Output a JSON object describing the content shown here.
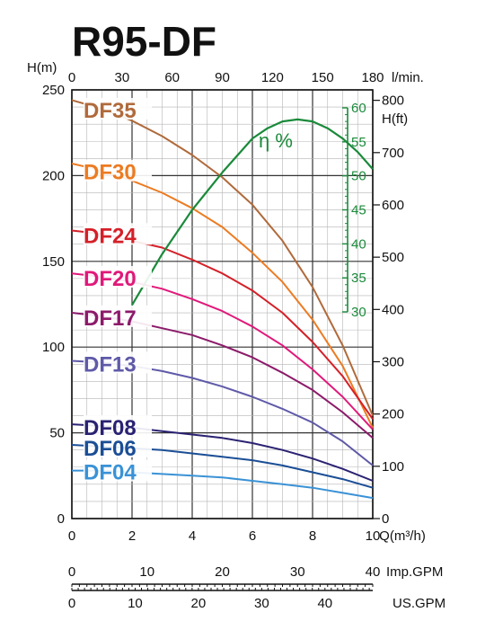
{
  "title": "R95-DF",
  "chart_data": {
    "type": "line",
    "title": "R95-DF",
    "axes": {
      "q_m3h": {
        "label": "Q(m³/h)",
        "range": [
          0,
          10
        ],
        "ticks": [
          0,
          2,
          4,
          6,
          8,
          10
        ]
      },
      "flow_lmin": {
        "label": "l/min.",
        "range": [
          0,
          180
        ],
        "ticks": [
          0,
          30,
          60,
          90,
          120,
          150,
          180
        ]
      },
      "head_m": {
        "label": "H(m)",
        "range": [
          0,
          250
        ],
        "ticks": [
          0,
          50,
          100,
          150,
          200,
          250
        ]
      },
      "head_ft": {
        "label": "H(ft)",
        "range": [
          0,
          820
        ],
        "ticks": [
          0,
          100,
          200,
          300,
          400,
          500,
          600,
          700,
          800
        ]
      },
      "efficiency": {
        "label": "η %",
        "range": [
          30,
          60
        ],
        "ticks": [
          30,
          35,
          40,
          45,
          50,
          55,
          60
        ]
      },
      "imp_gpm": {
        "label": "Imp.GPM",
        "range": [
          0,
          40
        ],
        "ticks": [
          0,
          10,
          20,
          30,
          40
        ]
      },
      "us_gpm": {
        "label": "US.GPM",
        "range": [
          0,
          44
        ],
        "ticks": [
          0,
          10,
          20,
          30,
          40
        ]
      }
    },
    "grid": true,
    "series": [
      {
        "name": "DF35",
        "color": "#b06a3b",
        "x": [
          0,
          1,
          2,
          3,
          4,
          5,
          6,
          7,
          8,
          9,
          10
        ],
        "y": [
          244,
          239,
          232,
          223,
          212,
          199,
          183,
          162,
          135,
          101,
          60
        ]
      },
      {
        "name": "DF30",
        "color": "#ec7b22",
        "x": [
          0,
          1,
          2,
          3,
          4,
          5,
          6,
          7,
          8,
          9,
          10
        ],
        "y": [
          207,
          203,
          197,
          190,
          181,
          170,
          155,
          138,
          116,
          89,
          53
        ]
      },
      {
        "name": "DF24",
        "color": "#d42028",
        "x": [
          0,
          1,
          2,
          3,
          4,
          5,
          6,
          7,
          8,
          9,
          10
        ],
        "y": [
          168,
          166,
          162,
          158,
          151,
          143,
          133,
          120,
          103,
          83,
          58
        ]
      },
      {
        "name": "DF20",
        "color": "#e0197a",
        "x": [
          0,
          1,
          2,
          3,
          4,
          5,
          6,
          7,
          8,
          9,
          10
        ],
        "y": [
          143,
          141,
          138,
          134,
          128,
          121,
          112,
          101,
          87,
          71,
          52
        ]
      },
      {
        "name": "DF17",
        "color": "#8c1a6a",
        "x": [
          0,
          1,
          2,
          3,
          4,
          5,
          6,
          7,
          8,
          9,
          10
        ],
        "y": [
          120,
          118,
          115,
          111,
          107,
          101,
          94,
          85,
          75,
          62,
          47
        ]
      },
      {
        "name": "DF13",
        "color": "#5f5aa8",
        "x": [
          0,
          1,
          2,
          3,
          4,
          5,
          6,
          7,
          8,
          9,
          10
        ],
        "y": [
          92,
          91,
          89,
          86,
          82,
          77,
          71,
          64,
          56,
          45,
          31
        ]
      },
      {
        "name": "DF08",
        "color": "#2a2272",
        "x": [
          0,
          1,
          2,
          3,
          4,
          5,
          6,
          7,
          8,
          9,
          10
        ],
        "y": [
          55,
          54,
          53,
          51,
          49,
          47,
          44,
          40,
          35,
          29,
          22
        ]
      },
      {
        "name": "DF06",
        "color": "#1b4e96",
        "x": [
          0,
          1,
          2,
          3,
          4,
          5,
          6,
          7,
          8,
          9,
          10
        ],
        "y": [
          43,
          42,
          41,
          40,
          38,
          36,
          34,
          31,
          27,
          23,
          18
        ]
      },
      {
        "name": "DF04",
        "color": "#3a92d6",
        "x": [
          0,
          1,
          2,
          3,
          4,
          5,
          6,
          7,
          8,
          9,
          10
        ],
        "y": [
          28,
          28,
          27,
          26,
          25,
          24,
          22,
          20,
          18,
          15,
          12
        ]
      }
    ],
    "efficiency_curve": {
      "name": "η %",
      "color": "#1a8a3a",
      "x": [
        2,
        3,
        4,
        5,
        6,
        6.5,
        7,
        7.5,
        8,
        8.5,
        9,
        9.5,
        10
      ],
      "y": [
        31,
        38.5,
        45,
        50.5,
        55.5,
        57,
        58,
        58.3,
        58,
        57,
        55.5,
        53.5,
        51
      ]
    }
  }
}
